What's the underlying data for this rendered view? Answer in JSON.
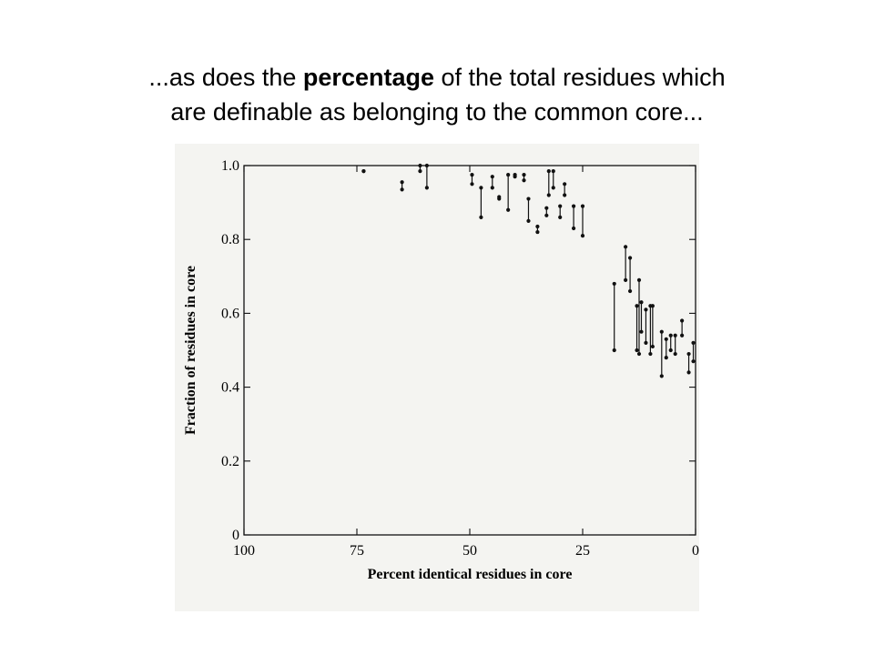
{
  "slide": {
    "title_part1": "...as does the ",
    "title_bold": "percentage",
    "title_part2": " of the total residues which",
    "title_line2": "are definable as belonging to the common core..."
  },
  "chart_data": {
    "type": "scatter",
    "xlabel": "Percent identical residues in core",
    "ylabel": "Fraction of residues in core",
    "xlim": [
      100,
      0
    ],
    "ylim": [
      0,
      1.0
    ],
    "x_ticks": [
      100,
      75,
      50,
      25,
      0
    ],
    "x_tick_labels": [
      "100",
      "75",
      "50",
      "25",
      "0"
    ],
    "y_ticks": [
      0,
      0.2,
      0.4,
      0.6,
      0.8,
      1.0
    ],
    "y_tick_labels": [
      "0",
      "0.2",
      "0.4",
      "0.6",
      "0.8",
      "1.0"
    ],
    "grid": false,
    "ranges": [
      {
        "x": 73.5,
        "y1": 0.985,
        "y2": 0.985
      },
      {
        "x": 65.0,
        "y1": 0.935,
        "y2": 0.955
      },
      {
        "x": 61.0,
        "y1": 0.985,
        "y2": 1.0
      },
      {
        "x": 59.5,
        "y1": 0.94,
        "y2": 1.0
      },
      {
        "x": 49.5,
        "y1": 0.95,
        "y2": 0.975
      },
      {
        "x": 47.5,
        "y1": 0.86,
        "y2": 0.94
      },
      {
        "x": 45.0,
        "y1": 0.94,
        "y2": 0.97
      },
      {
        "x": 43.5,
        "y1": 0.91,
        "y2": 0.915
      },
      {
        "x": 41.5,
        "y1": 0.88,
        "y2": 0.975
      },
      {
        "x": 40.0,
        "y1": 0.97,
        "y2": 0.975
      },
      {
        "x": 38.0,
        "y1": 0.96,
        "y2": 0.975
      },
      {
        "x": 37.0,
        "y1": 0.85,
        "y2": 0.91
      },
      {
        "x": 35.0,
        "y1": 0.82,
        "y2": 0.835
      },
      {
        "x": 33.0,
        "y1": 0.865,
        "y2": 0.885
      },
      {
        "x": 32.5,
        "y1": 0.92,
        "y2": 0.985
      },
      {
        "x": 31.5,
        "y1": 0.94,
        "y2": 0.985
      },
      {
        "x": 30.0,
        "y1": 0.86,
        "y2": 0.89
      },
      {
        "x": 29.0,
        "y1": 0.92,
        "y2": 0.95
      },
      {
        "x": 27.0,
        "y1": 0.83,
        "y2": 0.89
      },
      {
        "x": 25.0,
        "y1": 0.81,
        "y2": 0.89
      },
      {
        "x": 18.0,
        "y1": 0.5,
        "y2": 0.68
      },
      {
        "x": 15.5,
        "y1": 0.69,
        "y2": 0.78
      },
      {
        "x": 14.5,
        "y1": 0.66,
        "y2": 0.75
      },
      {
        "x": 13.0,
        "y1": 0.5,
        "y2": 0.62
      },
      {
        "x": 12.5,
        "y1": 0.49,
        "y2": 0.69
      },
      {
        "x": 12.0,
        "y1": 0.55,
        "y2": 0.63
      },
      {
        "x": 11.0,
        "y1": 0.52,
        "y2": 0.61
      },
      {
        "x": 10.0,
        "y1": 0.49,
        "y2": 0.62
      },
      {
        "x": 9.5,
        "y1": 0.51,
        "y2": 0.62
      },
      {
        "x": 7.5,
        "y1": 0.43,
        "y2": 0.55
      },
      {
        "x": 6.5,
        "y1": 0.48,
        "y2": 0.53
      },
      {
        "x": 5.5,
        "y1": 0.5,
        "y2": 0.54
      },
      {
        "x": 4.5,
        "y1": 0.49,
        "y2": 0.54
      },
      {
        "x": 3.0,
        "y1": 0.54,
        "y2": 0.58
      },
      {
        "x": 1.5,
        "y1": 0.44,
        "y2": 0.49
      },
      {
        "x": 0.5,
        "y1": 0.47,
        "y2": 0.52
      }
    ]
  }
}
